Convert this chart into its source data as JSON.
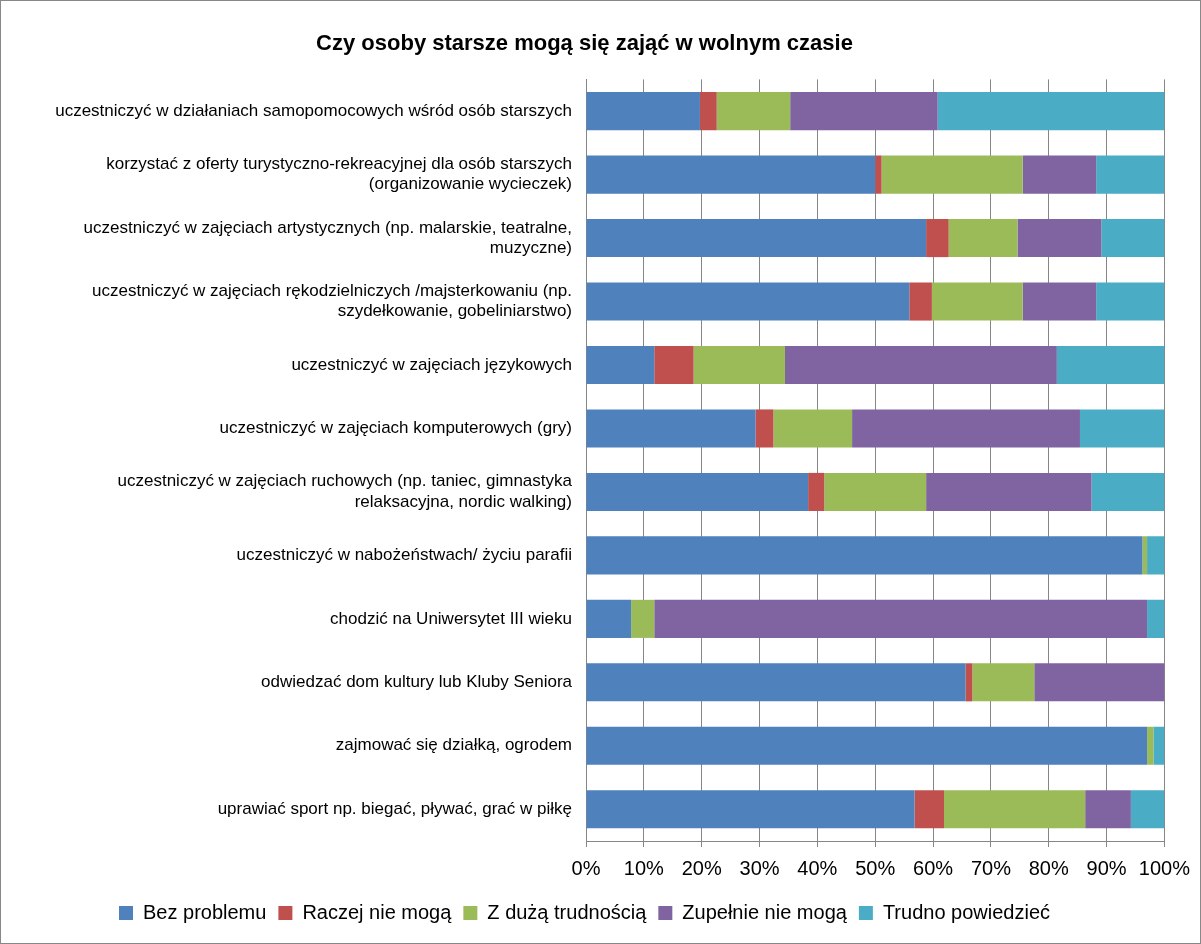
{
  "chart_data": {
    "type": "bar",
    "orientation": "horizontal",
    "stacked": true,
    "title": "Czy osoby starsze mogą się zająć w wolnym czasie",
    "categories": [
      "uczestniczyć w działaniach samopomocowych wśród osób starszych",
      "korzystać z oferty turystyczno-rekreacyjnej dla osób starszych (organizowanie wycieczek)",
      "uczestniczyć w zajęciach artystycznych (np. malarskie, teatralne, muzyczne)",
      "uczestniczyć w zajęciach rękodzielniczych /majsterkowaniu (np. szydełkowanie, gobeliniarstwo)",
      "uczestniczyć w zajęciach językowych",
      "uczestniczyć w zajęciach komputerowych (gry)",
      "uczestniczyć w zajęciach ruchowych (np. taniec, gimnastyka relaksacyjna, nordic walking)",
      "uczestniczyć w nabożeństwach/ życiu parafii",
      "chodzić na Uniwersytet III wieku",
      "odwiedzać dom kultury lub Kluby Seniora",
      "zajmować się działką, ogrodem",
      "uprawiać sport np. biegać, pływać, grać w piłkę"
    ],
    "series": [
      {
        "name": "Bez problemu",
        "color": "#4f81bd",
        "values": [
          19.7,
          50.0,
          58.8,
          55.9,
          11.8,
          29.3,
          38.4,
          96.2,
          7.8,
          65.6,
          97.0,
          56.8
        ]
      },
      {
        "name": "Raczej nie mogą",
        "color": "#c0504d",
        "values": [
          2.9,
          1.1,
          3.9,
          3.9,
          6.8,
          3.1,
          2.8,
          0,
          0,
          1.2,
          0,
          5.1
        ]
      },
      {
        "name": "Z dużą trudnością",
        "color": "#9bbb59",
        "values": [
          12.7,
          24.4,
          11.9,
          15.7,
          15.8,
          13.6,
          17.6,
          0.8,
          4.0,
          10.7,
          1.1,
          24.4
        ]
      },
      {
        "name": "Zupełnie nie mogą",
        "color": "#8064a2",
        "values": [
          25.5,
          12.7,
          14.5,
          12.7,
          47.0,
          39.4,
          28.6,
          0,
          85.2,
          22.5,
          0,
          7.9
        ]
      },
      {
        "name": "Trudno powiedzieć",
        "color": "#4bacc6",
        "values": [
          39.2,
          11.8,
          10.9,
          11.8,
          18.6,
          14.6,
          12.6,
          3.0,
          3.0,
          0,
          1.9,
          5.8
        ]
      }
    ],
    "xlim": [
      0,
      100
    ],
    "xticks": [
      {
        "value": 0,
        "label": "0%"
      },
      {
        "value": 10,
        "label": "10%"
      },
      {
        "value": 20,
        "label": "20%"
      },
      {
        "value": 30,
        "label": "30%"
      },
      {
        "value": 40,
        "label": "40%"
      },
      {
        "value": 50,
        "label": "50%"
      },
      {
        "value": 60,
        "label": "60%"
      },
      {
        "value": 70,
        "label": "70%"
      },
      {
        "value": 80,
        "label": "80%"
      },
      {
        "value": 90,
        "label": "90%"
      },
      {
        "value": 100,
        "label": "100%"
      }
    ],
    "grid": "x",
    "legend": "bottom"
  }
}
